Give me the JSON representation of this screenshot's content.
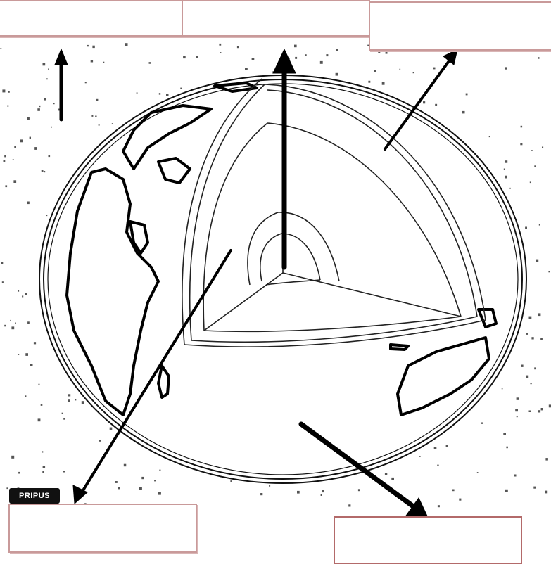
{
  "diagram": {
    "labels": {
      "top_left": "",
      "top_middle": "",
      "top_right": "",
      "bottom_left": "",
      "bottom_right": ""
    },
    "logo_text": "PRIPUS",
    "colors": {
      "box_border": "#c99a9a",
      "box_border_dark": "#b36a6a",
      "arrow": "#000000",
      "line_art": "#000000"
    }
  }
}
